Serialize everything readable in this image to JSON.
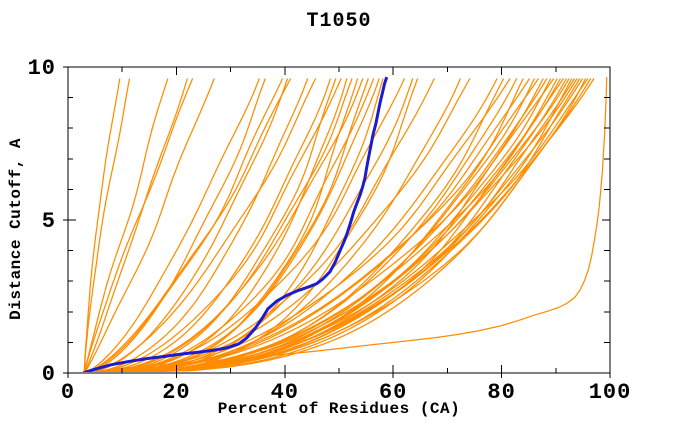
{
  "chart_data": {
    "type": "line",
    "title": "T1050",
    "xlabel": "Percent of Residues (CA)",
    "ylabel": "Distance Cutoff, A",
    "xlim": [
      0,
      100
    ],
    "ylim": [
      0,
      10
    ],
    "x_major_ticks": [
      0,
      20,
      40,
      60,
      80,
      100
    ],
    "x_minor_ticks": [
      10,
      30,
      50,
      70,
      90
    ],
    "y_major_ticks": [
      0,
      5,
      10
    ],
    "y_minor_ticks": [
      1,
      2,
      3,
      4,
      6,
      7,
      8,
      9
    ],
    "grid": "off",
    "legend": "none",
    "curve_top_y": 9.67,
    "curve_start_x": 2.8,
    "colors": {
      "model": "#ff8c00",
      "highlight": "#1c1ccd",
      "frame": "#000000",
      "background": "#ffffff"
    },
    "highlight_curve": {
      "name": "highlighted-model",
      "color_key": "highlight",
      "points": [
        [
          2.8,
          0
        ],
        [
          4.5,
          0.1
        ],
        [
          6.5,
          0.2
        ],
        [
          8,
          0.27
        ],
        [
          11,
          0.37
        ],
        [
          14.5,
          0.47
        ],
        [
          18,
          0.55
        ],
        [
          21,
          0.62
        ],
        [
          24,
          0.68
        ],
        [
          27,
          0.75
        ],
        [
          29.5,
          0.83
        ],
        [
          31.5,
          0.95
        ],
        [
          33,
          1.15
        ],
        [
          34.5,
          1.45
        ],
        [
          35.8,
          1.78
        ],
        [
          36.9,
          2.1
        ],
        [
          38.5,
          2.35
        ],
        [
          40.5,
          2.55
        ],
        [
          42.5,
          2.7
        ],
        [
          44.5,
          2.82
        ],
        [
          45.9,
          2.92
        ],
        [
          47,
          3.07
        ],
        [
          48.3,
          3.3
        ],
        [
          49.3,
          3.62
        ],
        [
          50.2,
          4.0
        ],
        [
          51,
          4.32
        ],
        [
          51.6,
          4.62
        ],
        [
          52.2,
          4.95
        ],
        [
          52.7,
          5.25
        ],
        [
          53.3,
          5.55
        ],
        [
          53.9,
          5.82
        ],
        [
          54.4,
          6.1
        ],
        [
          54.8,
          6.38
        ],
        [
          55.1,
          6.7
        ],
        [
          55.5,
          7.08
        ],
        [
          55.9,
          7.45
        ],
        [
          56.3,
          7.8
        ],
        [
          56.8,
          8.15
        ],
        [
          57.2,
          8.5
        ],
        [
          57.6,
          8.85
        ],
        [
          58,
          9.15
        ],
        [
          58.4,
          9.45
        ],
        [
          58.8,
          9.67
        ]
      ]
    },
    "outlier_curve": {
      "name": "low-outlier-model",
      "color_key": "model",
      "points": [
        [
          2.8,
          0
        ],
        [
          8,
          0.12
        ],
        [
          14,
          0.22
        ],
        [
          20,
          0.31
        ],
        [
          27,
          0.41
        ],
        [
          33,
          0.49
        ],
        [
          40,
          0.61
        ],
        [
          46,
          0.72
        ],
        [
          52,
          0.84
        ],
        [
          58,
          0.96
        ],
        [
          63,
          1.06
        ],
        [
          68,
          1.16
        ],
        [
          72,
          1.26
        ],
        [
          76,
          1.39
        ],
        [
          80,
          1.55
        ],
        [
          83,
          1.71
        ],
        [
          86,
          1.89
        ],
        [
          88.5,
          2.02
        ],
        [
          90.5,
          2.14
        ],
        [
          92,
          2.27
        ],
        [
          93.5,
          2.47
        ],
        [
          94.5,
          2.72
        ],
        [
          95.3,
          3.02
        ],
        [
          96,
          3.37
        ],
        [
          96.6,
          3.82
        ],
        [
          97.1,
          4.32
        ],
        [
          97.6,
          4.87
        ],
        [
          98,
          5.42
        ],
        [
          98.3,
          6.0
        ],
        [
          98.6,
          6.6
        ],
        [
          98.8,
          7.2
        ],
        [
          99,
          7.8
        ],
        [
          99.15,
          8.4
        ],
        [
          99.3,
          9.05
        ],
        [
          99.4,
          9.67
        ]
      ]
    },
    "model_curves": {
      "name": "predicted-models",
      "color_key": "model",
      "count": 56,
      "params_format": [
        "end_x_at_top",
        "shape_exponent",
        "wobble_amplitude",
        "wobble_phase"
      ],
      "params": [
        [
          9.6,
          1.45,
          0.4,
          0.5
        ],
        [
          11.4,
          1.3,
          0.5,
          2.1
        ],
        [
          18.5,
          1.05,
          0.8,
          4.0
        ],
        [
          22.1,
          0.95,
          0.7,
          1.2
        ],
        [
          23.1,
          1.1,
          0.6,
          3.3
        ],
        [
          27.1,
          0.9,
          0.9,
          5.1
        ],
        [
          35.4,
          0.72,
          1.1,
          0.8
        ],
        [
          36.5,
          0.6,
          1.0,
          2.6
        ],
        [
          39.7,
          0.66,
          1.2,
          4.4
        ],
        [
          40.6,
          0.55,
          0.9,
          1.7
        ],
        [
          41.2,
          0.7,
          1.1,
          3.9
        ],
        [
          44.3,
          0.5,
          1.2,
          0.3
        ],
        [
          45.8,
          0.6,
          1.0,
          2.9
        ],
        [
          48.5,
          0.45,
          1.3,
          1.0
        ],
        [
          49.5,
          0.38,
          1.1,
          3.5
        ],
        [
          50.5,
          0.5,
          1.2,
          5.5
        ],
        [
          51.5,
          0.35,
          1.0,
          0.9
        ],
        [
          52.5,
          0.42,
          1.3,
          2.4
        ],
        [
          53.5,
          0.31,
          1.1,
          4.6
        ],
        [
          54.5,
          0.45,
          1.2,
          1.5
        ],
        [
          55.5,
          0.33,
          1.0,
          3.8
        ],
        [
          56.5,
          0.4,
          1.3,
          5.8
        ],
        [
          57.5,
          0.36,
          1.1,
          0.4
        ],
        [
          58.2,
          0.3,
          0.9,
          2.2
        ],
        [
          62.2,
          0.42,
          1.3,
          4.9
        ],
        [
          63.7,
          0.35,
          1.2,
          1.8
        ],
        [
          64.6,
          0.3,
          1.0,
          3.1
        ],
        [
          67.7,
          0.4,
          1.3,
          5.3
        ],
        [
          72.5,
          0.36,
          1.2,
          0.7
        ],
        [
          74.3,
          0.42,
          1.1,
          2.8
        ],
        [
          79.3,
          0.4,
          1.2,
          1.1
        ],
        [
          80.5,
          0.34,
          1.0,
          3.2
        ],
        [
          81.7,
          0.43,
          1.3,
          5.0
        ],
        [
          82.9,
          0.36,
          1.1,
          0.6
        ],
        [
          84.1,
          0.32,
          1.2,
          2.5
        ],
        [
          85.3,
          0.41,
          1.0,
          4.3
        ],
        [
          86.2,
          0.35,
          1.3,
          1.9
        ],
        [
          87.0,
          0.43,
          1.1,
          3.7
        ],
        [
          87.8,
          0.33,
          1.2,
          5.6
        ],
        [
          88.5,
          0.38,
          1.0,
          0.2
        ],
        [
          89.2,
          0.35,
          1.3,
          2.0
        ],
        [
          89.8,
          0.42,
          1.1,
          4.1
        ],
        [
          90.4,
          0.33,
          1.2,
          6.0
        ],
        [
          91.0,
          0.37,
          1.0,
          1.4
        ],
        [
          91.6,
          0.4,
          1.3,
          3.4
        ],
        [
          92.1,
          0.34,
          1.1,
          5.4
        ],
        [
          92.6,
          0.38,
          1.2,
          0.9
        ],
        [
          93.1,
          0.32,
          1.0,
          2.7
        ],
        [
          93.6,
          0.36,
          1.3,
          4.7
        ],
        [
          94.1,
          0.4,
          1.1,
          1.6
        ],
        [
          94.6,
          0.34,
          1.2,
          3.6
        ],
        [
          95.1,
          0.37,
          1.0,
          5.7
        ],
        [
          95.6,
          0.32,
          1.3,
          1.2
        ],
        [
          96.1,
          0.39,
          1.1,
          3.0
        ],
        [
          96.6,
          0.35,
          1.2,
          5.2
        ],
        [
          97.2,
          0.38,
          1.0,
          0.5
        ]
      ]
    }
  }
}
